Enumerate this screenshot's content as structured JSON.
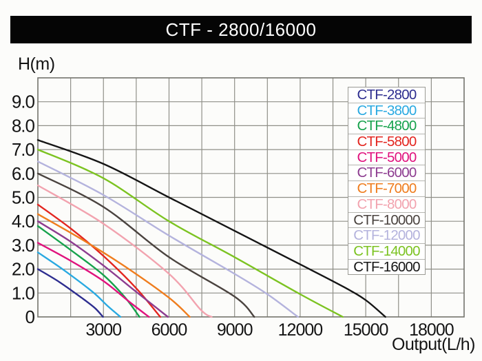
{
  "header": {
    "title": "CTF - 2800/16000"
  },
  "axes": {
    "y_label": "H(m)",
    "y_ticks": [
      "9.0",
      "8.0",
      "7.0",
      "6.0",
      "5.0",
      "4.0",
      "3.0",
      "2.0",
      "1.0",
      "0"
    ],
    "x_ticks": [
      "3000",
      "6000",
      "9000",
      "12000",
      "15000",
      "18000"
    ],
    "x_label": "Output(L/h)"
  },
  "colors": {
    "grid": "#8f8f88",
    "plot_border": "#73736c",
    "title_bar_bg": "#050505",
    "title_bar_text": "#ffffff",
    "tick_text": "#141414"
  },
  "chart_data": {
    "type": "line",
    "title": "CTF - 2800/16000",
    "xlabel": "Output(L/h)",
    "ylabel": "H(m)",
    "xlim": [
      0,
      19500
    ],
    "ylim": [
      0,
      10
    ],
    "x_tick_values": [
      3000,
      6000,
      9000,
      12000,
      15000,
      18000
    ],
    "y_tick_values": [
      9,
      8,
      7,
      6,
      5,
      4,
      3,
      2,
      1,
      0
    ],
    "x_gridline_step": 1500,
    "y_gridline_step": 1,
    "grid": true,
    "legend_position": "top-right",
    "series": [
      {
        "name": "CTF-2800",
        "color": "#2d2d8f",
        "points": [
          [
            0,
            2.0
          ],
          [
            1000,
            1.45
          ],
          [
            2000,
            0.8
          ],
          [
            2600,
            0.38
          ],
          [
            2980,
            0
          ]
        ]
      },
      {
        "name": "CTF-3800",
        "color": "#29a9e1",
        "points": [
          [
            0,
            2.7
          ],
          [
            1200,
            1.95
          ],
          [
            2500,
            1.05
          ],
          [
            3200,
            0.45
          ],
          [
            3780,
            0
          ]
        ]
      },
      {
        "name": "CTF-4800",
        "color": "#16a24c",
        "points": [
          [
            0,
            3.8
          ],
          [
            1500,
            2.8
          ],
          [
            3000,
            1.75
          ],
          [
            4000,
            0.8
          ],
          [
            4650,
            0
          ]
        ]
      },
      {
        "name": "CTF-5800",
        "color": "#e3251f",
        "points": [
          [
            0,
            4.7
          ],
          [
            1500,
            3.7
          ],
          [
            3000,
            2.55
          ],
          [
            4500,
            1.2
          ],
          [
            5600,
            0
          ]
        ]
      },
      {
        "name": "CTF-5000",
        "color": "#e0127d",
        "points": [
          [
            0,
            3.1
          ],
          [
            1500,
            2.35
          ],
          [
            3000,
            1.5
          ],
          [
            4200,
            0.62
          ],
          [
            5080,
            0
          ]
        ]
      },
      {
        "name": "CTF-6000",
        "color": "#8d3c90",
        "points": [
          [
            0,
            4.0
          ],
          [
            1500,
            3.15
          ],
          [
            3000,
            2.15
          ],
          [
            4500,
            1.05
          ],
          [
            5950,
            0
          ]
        ]
      },
      {
        "name": "CTF-7000",
        "color": "#ef7d1e",
        "points": [
          [
            0,
            4.3
          ],
          [
            2000,
            3.25
          ],
          [
            4000,
            2.1
          ],
          [
            6000,
            0.8
          ],
          [
            6950,
            0
          ]
        ]
      },
      {
        "name": "CTF-8000",
        "color": "#f2a3af",
        "points": [
          [
            0,
            5.5
          ],
          [
            3000,
            3.9
          ],
          [
            6000,
            1.8
          ],
          [
            7450,
            0.3
          ],
          [
            7950,
            0
          ]
        ]
      },
      {
        "name": "CTF-10000",
        "color": "#4a433f",
        "points": [
          [
            0,
            6.0
          ],
          [
            3000,
            4.6
          ],
          [
            6000,
            2.5
          ],
          [
            9000,
            0.85
          ],
          [
            9900,
            0
          ]
        ]
      },
      {
        "name": "CTF-12000",
        "color": "#b4b3dd",
        "points": [
          [
            0,
            6.5
          ],
          [
            3000,
            5.1
          ],
          [
            6000,
            3.4
          ],
          [
            9000,
            1.8
          ],
          [
            10500,
            0.95
          ],
          [
            11900,
            0
          ]
        ]
      },
      {
        "name": "CTF-14000",
        "color": "#7cc321",
        "points": [
          [
            0,
            7.0
          ],
          [
            3000,
            5.8
          ],
          [
            6000,
            4.0
          ],
          [
            9000,
            2.5
          ],
          [
            12000,
            0.95
          ],
          [
            13950,
            0
          ]
        ]
      },
      {
        "name": "CTF-16000",
        "color": "#151515",
        "points": [
          [
            0,
            7.4
          ],
          [
            3000,
            6.4
          ],
          [
            6000,
            5.0
          ],
          [
            9000,
            3.6
          ],
          [
            12000,
            2.2
          ],
          [
            14000,
            1.25
          ],
          [
            15000,
            0.7
          ],
          [
            15900,
            0
          ]
        ]
      }
    ]
  }
}
